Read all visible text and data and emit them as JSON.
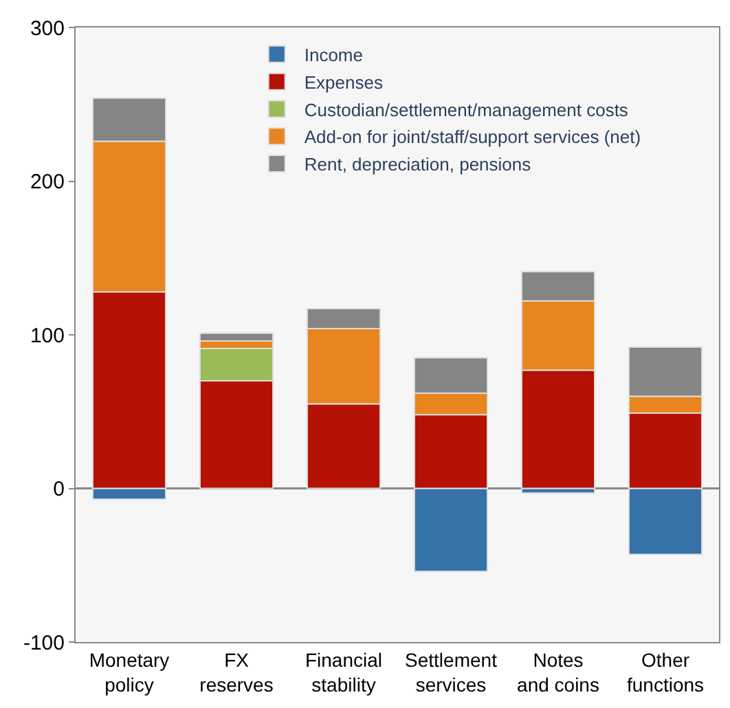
{
  "chart_data": {
    "type": "bar",
    "stacked": true,
    "categories": [
      "Monetary policy",
      "FX reserves",
      "Financial stability",
      "Settlement services",
      "Notes and coins",
      "Other functions"
    ],
    "series": [
      {
        "name": "Income",
        "color": "#3572a8",
        "values": [
          -7,
          null,
          null,
          -54,
          -3,
          -43
        ]
      },
      {
        "name": "Expenses",
        "color": "#b51205",
        "values": [
          128,
          70,
          55,
          48,
          77,
          49
        ]
      },
      {
        "name": "Custodian/settlement/management costs",
        "color": "#9bbb59",
        "values": [
          null,
          21,
          null,
          null,
          null,
          null
        ]
      },
      {
        "name": "Add-on for joint/staff/support services (net)",
        "color": "#e8851e",
        "values": [
          98,
          5,
          49,
          14,
          45,
          11
        ]
      },
      {
        "name": "Rent, depreciation, pensions",
        "color": "#858585",
        "values": [
          28,
          5,
          13,
          23,
          19,
          32
        ]
      }
    ],
    "ylim": [
      -100,
      300
    ],
    "yticks": [
      -100,
      0,
      100,
      200,
      300
    ],
    "legend": "top"
  }
}
